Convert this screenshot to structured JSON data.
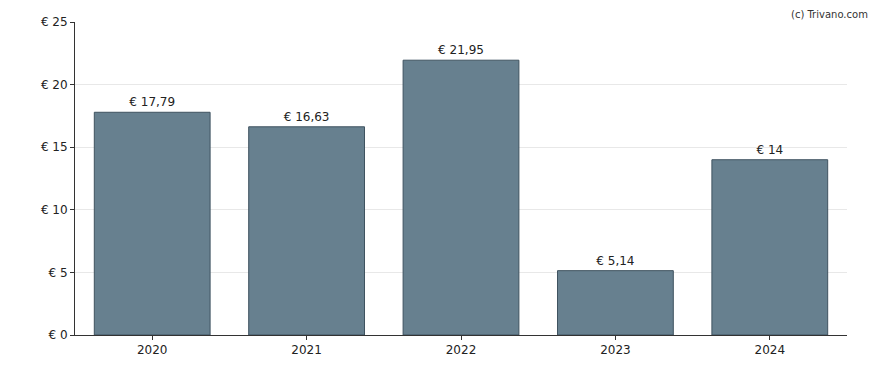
{
  "chart_data": {
    "type": "bar",
    "categories": [
      "2020",
      "2021",
      "2022",
      "2023",
      "2024"
    ],
    "values": [
      17.79,
      16.63,
      21.95,
      5.14,
      14
    ],
    "value_labels": [
      "€ 17,79",
      "€ 16,63",
      "€ 21,95",
      "€ 5,14",
      "€ 14"
    ],
    "data_labels": true,
    "color": "#67808f",
    "ylim": [
      0,
      25
    ],
    "yticks": [
      {
        "value": 0,
        "label": "€ 0"
      },
      {
        "value": 5,
        "label": "€ 5"
      },
      {
        "value": 10,
        "label": "€ 10"
      },
      {
        "value": 15,
        "label": "€ 15"
      },
      {
        "value": 20,
        "label": "€ 20"
      },
      {
        "value": 25,
        "label": "€ 25"
      }
    ],
    "grid": true,
    "annotations": [
      "(c) Trivano.com"
    ]
  }
}
